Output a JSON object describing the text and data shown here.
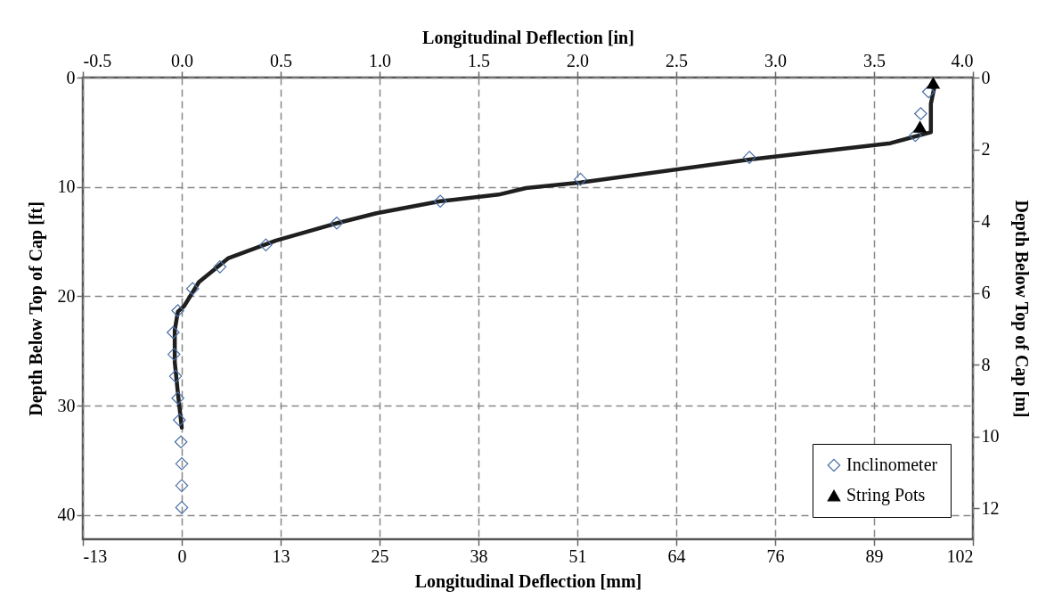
{
  "chart_data": {
    "type": "line",
    "xlabel": "Longitudinal Deflection [mm]",
    "x2label": "Longitudinal Deflection [in]",
    "ylabel": "Depth Below Top of Cap [ft]",
    "y2label": "Depth Below Top of Cap [m]",
    "xlim": [
      -12.7,
      101.6
    ],
    "xticks": [
      {
        "value": -12.7,
        "label": "-13"
      },
      {
        "value": 0,
        "label": "0"
      },
      {
        "value": 12.7,
        "label": "13"
      },
      {
        "value": 25.4,
        "label": "25"
      },
      {
        "value": 38.1,
        "label": "38"
      },
      {
        "value": 50.8,
        "label": "51"
      },
      {
        "value": 63.5,
        "label": "64"
      },
      {
        "value": 76.2,
        "label": "76"
      },
      {
        "value": 88.9,
        "label": "89"
      },
      {
        "value": 101.6,
        "label": "102"
      }
    ],
    "x2lim": [
      -0.5,
      4
    ],
    "x2ticks": [
      {
        "value": -0.5,
        "label": "-0.5"
      },
      {
        "value": 0,
        "label": "0.0"
      },
      {
        "value": 0.5,
        "label": "0.5"
      },
      {
        "value": 1,
        "label": "1.0"
      },
      {
        "value": 1.5,
        "label": "1.5"
      },
      {
        "value": 2,
        "label": "2.0"
      },
      {
        "value": 2.5,
        "label": "2.5"
      },
      {
        "value": 3,
        "label": "3.0"
      },
      {
        "value": 3.5,
        "label": "3.5"
      },
      {
        "value": 4,
        "label": "4.0"
      }
    ],
    "ylim": [
      42.2,
      0
    ],
    "yticks": [
      0,
      10,
      20,
      30,
      40
    ],
    "y2lim": [
      12.86,
      0
    ],
    "y2ticks": [
      0,
      2,
      4,
      6,
      8,
      10,
      12
    ],
    "grid": true,
    "legend": "bottom right",
    "line_style": "solid",
    "series": [
      {
        "color": "#1f1f1f",
        "marker": "none",
        "x": [
          96.7,
          96.2,
          96.2,
          91.0,
          72.9,
          51.2,
          44.2,
          40.7,
          33.2,
          25.0,
          20.0,
          12.1,
          6.0,
          2.2,
          0.3,
          -0.5,
          -0.9,
          -0.9,
          -0.5,
          0
        ],
        "values": [
          0.7,
          2.4,
          5.0,
          6.0,
          7.5,
          9.6,
          10.1,
          10.7,
          11.3,
          12.4,
          13.3,
          14.9,
          16.5,
          18.7,
          20.9,
          21.4,
          23.1,
          26.0,
          28.8,
          32.0
        ]
      },
      {
        "type": "scatter",
        "name": "Inclinometer",
        "color": "#4a6fa5",
        "marker": "diamond",
        "x": [
          95.9,
          94.9,
          94.2,
          72.9,
          51.2,
          33.2,
          19.9,
          10.8,
          4.9,
          1.4,
          -0.5,
          -1.1,
          -1.0,
          -0.8,
          -0.5,
          -0.3,
          -0.1,
          0,
          0,
          0
        ],
        "values": [
          1.3,
          3.3,
          5.3,
          7.3,
          9.3,
          11.3,
          13.3,
          15.3,
          17.3,
          19.3,
          21.3,
          23.3,
          25.3,
          27.3,
          29.3,
          31.3,
          33.3,
          35.3,
          37.3,
          39.3
        ]
      },
      {
        "type": "scatter",
        "name": "String Pots",
        "color": "#000000",
        "marker": "triangle",
        "x": [
          96.5,
          94.8
        ],
        "values": [
          0.5,
          4.5
        ]
      }
    ]
  }
}
